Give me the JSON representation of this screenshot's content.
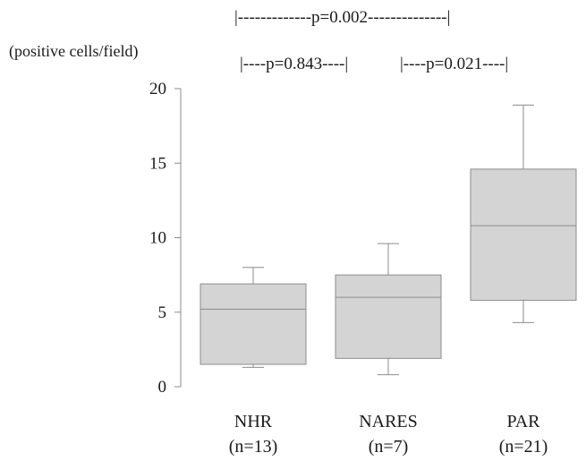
{
  "chart_data": {
    "type": "box",
    "ylabel": "(positive cells/field)",
    "ylim": [
      0,
      20
    ],
    "yticks": [
      0,
      5,
      10,
      15,
      20
    ],
    "grid": false,
    "categories": [
      {
        "name": "NHR",
        "n_label": "(n=13)",
        "whisker_low": 1.3,
        "q1": 1.5,
        "median": 5.2,
        "q3": 6.9,
        "whisker_high": 8.0
      },
      {
        "name": "NARES",
        "n_label": "(n=7)",
        "whisker_low": 0.8,
        "q1": 1.9,
        "median": 6.0,
        "q3": 7.5,
        "whisker_high": 9.6
      },
      {
        "name": "PAR",
        "n_label": "(n=21)",
        "whisker_low": 4.3,
        "q1": 5.8,
        "median": 10.8,
        "q3": 14.6,
        "whisker_high": 18.9
      }
    ],
    "box_color": "#d4d4d4",
    "line_color": "#8c8c8c",
    "comparisons": [
      {
        "text": "|-------------p=0.002--------------|"
      },
      {
        "text": "|----p=0.843----|"
      },
      {
        "text": "|----p=0.021----|"
      }
    ]
  }
}
